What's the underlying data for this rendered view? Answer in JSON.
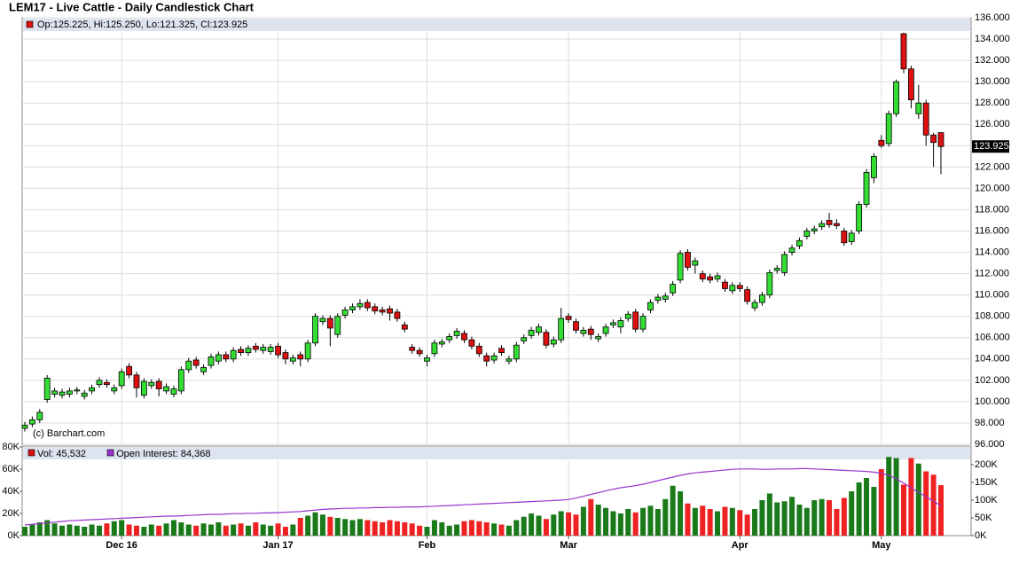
{
  "chart_data": [
    {
      "type": "candlestick",
      "title": "LEM17 - Live Cattle - Daily Candlestick Chart",
      "legend": "Op:125.225, Hi:125.250, Lo:121.325, Cl:123.925",
      "watermark": "(c) Barchart.com",
      "up_color": "#33dd33",
      "down_color": "#dd1111",
      "grid": true,
      "categories": [
        null,
        null,
        null,
        null,
        null,
        null,
        null,
        null,
        null,
        null,
        null,
        null,
        null,
        "Dec 16",
        null,
        null,
        null,
        null,
        null,
        null,
        null,
        null,
        null,
        null,
        null,
        null,
        null,
        null,
        null,
        null,
        null,
        null,
        null,
        null,
        "Jan 17",
        null,
        null,
        null,
        null,
        null,
        null,
        null,
        null,
        null,
        null,
        null,
        null,
        null,
        null,
        null,
        null,
        null,
        null,
        null,
        "Feb",
        null,
        null,
        null,
        null,
        null,
        null,
        null,
        null,
        null,
        null,
        null,
        null,
        null,
        null,
        null,
        null,
        null,
        null,
        "Mar",
        null,
        null,
        null,
        null,
        null,
        null,
        null,
        null,
        null,
        null,
        null,
        null,
        null,
        null,
        null,
        null,
        null,
        null,
        null,
        null,
        null,
        null,
        "Apr",
        null,
        null,
        null,
        null,
        null,
        null,
        null,
        null,
        null,
        null,
        null,
        null,
        null,
        null,
        null,
        null,
        null,
        null,
        "May",
        null,
        null,
        null,
        null,
        null,
        null,
        null,
        null
      ],
      "open": [
        97.5,
        97.9,
        98.3,
        100.2,
        100.7,
        100.6,
        100.7,
        101.0,
        100.5,
        101.0,
        101.6,
        101.8,
        101.0,
        101.5,
        103.3,
        102.5,
        100.6,
        101.5,
        101.9,
        101.0,
        100.7,
        101.0,
        103.0,
        103.9,
        102.8,
        103.4,
        103.8,
        104.4,
        104.0,
        104.9,
        104.6,
        105.2,
        104.8,
        104.7,
        105.2,
        104.6,
        103.8,
        104.4,
        104.0,
        105.5,
        107.5,
        107.8,
        106.3,
        108.1,
        108.6,
        108.9,
        109.3,
        108.9,
        108.6,
        108.7,
        108.4,
        107.2,
        105.1,
        104.8,
        103.8,
        104.5,
        105.4,
        105.8,
        106.2,
        106.4,
        105.8,
        105.2,
        104.3,
        103.9,
        105.0,
        103.8,
        104.0,
        105.7,
        106.2,
        106.5,
        106.5,
        105.4,
        105.8,
        108.0,
        107.5,
        106.4,
        106.8,
        105.9,
        106.4,
        107.2,
        107.0,
        107.8,
        108.4,
        106.8,
        108.6,
        109.5,
        109.6,
        110.2,
        111.4,
        114.0,
        112.8,
        112.0,
        111.7,
        111.5,
        111.2,
        110.4,
        110.9,
        110.5,
        108.8,
        109.3,
        110.0,
        112.3,
        112.1,
        114.0,
        114.6,
        115.5,
        116.0,
        116.4,
        117.0,
        116.7,
        116.0,
        115.0,
        116.0,
        118.5,
        121.0,
        124.5,
        124.2,
        127.0,
        134.5,
        131.2,
        127.0,
        128.0,
        125.0,
        125.225
      ],
      "high": [
        98.1,
        98.6,
        99.3,
        102.5,
        101.3,
        101.2,
        101.3,
        101.4,
        101.1,
        101.6,
        102.3,
        102.1,
        101.6,
        103.1,
        103.6,
        102.8,
        102.2,
        102.1,
        102.2,
        101.7,
        101.5,
        103.3,
        104.1,
        104.2,
        103.5,
        104.5,
        104.7,
        104.7,
        105.1,
        105.2,
        105.3,
        105.5,
        105.4,
        105.4,
        105.5,
        104.9,
        104.4,
        104.7,
        105.8,
        108.3,
        108.1,
        108.1,
        108.3,
        108.9,
        109.2,
        109.6,
        109.6,
        109.2,
        108.9,
        109.0,
        108.7,
        107.5,
        105.4,
        105.1,
        104.4,
        105.8,
        105.9,
        106.4,
        106.9,
        106.7,
        106.1,
        105.5,
        104.6,
        104.6,
        105.3,
        104.3,
        105.6,
        106.3,
        107.0,
        107.3,
        106.8,
        106.1,
        108.8,
        108.3,
        107.8,
        107.0,
        107.1,
        106.4,
        107.3,
        107.7,
        107.9,
        108.5,
        108.7,
        108.3,
        109.6,
        110.1,
        110.2,
        111.3,
        114.2,
        114.3,
        113.5,
        112.3,
        112.0,
        112.1,
        111.5,
        111.2,
        111.2,
        110.8,
        109.6,
        110.3,
        112.4,
        112.8,
        114.1,
        114.7,
        115.4,
        116.3,
        116.5,
        117.0,
        117.7,
        117.1,
        116.3,
        116.1,
        118.8,
        121.8,
        123.3,
        125.0,
        127.3,
        130.2,
        134.6,
        131.5,
        129.7,
        128.3,
        125.2,
        125.25
      ],
      "low": [
        97.2,
        97.6,
        98.0,
        99.9,
        100.4,
        100.3,
        100.4,
        100.7,
        100.2,
        100.7,
        101.3,
        101.3,
        100.7,
        101.2,
        102.2,
        100.4,
        100.3,
        101.2,
        100.5,
        100.7,
        100.4,
        100.7,
        102.7,
        103.1,
        102.5,
        103.1,
        103.5,
        103.7,
        103.7,
        104.3,
        104.3,
        104.6,
        104.5,
        104.4,
        104.1,
        103.5,
        103.5,
        103.3,
        103.7,
        105.2,
        107.2,
        105.2,
        106.0,
        107.8,
        108.3,
        108.6,
        108.5,
        108.2,
        108.1,
        107.6,
        107.5,
        106.5,
        104.5,
        104.2,
        103.3,
        104.2,
        105.1,
        105.5,
        105.9,
        105.5,
        104.9,
        104.2,
        103.3,
        103.6,
        104.3,
        103.5,
        103.7,
        105.4,
        105.9,
        106.2,
        105.0,
        105.1,
        105.5,
        107.4,
        106.4,
        106.1,
        105.8,
        105.6,
        106.1,
        106.9,
        106.4,
        107.5,
        106.5,
        106.5,
        108.3,
        109.2,
        109.3,
        109.9,
        111.1,
        112.3,
        112.0,
        111.2,
        111.1,
        111.2,
        110.3,
        110.1,
        110.3,
        109.1,
        108.5,
        109.0,
        109.7,
        112.0,
        111.8,
        113.7,
        114.3,
        115.2,
        115.7,
        116.1,
        116.3,
        116.2,
        114.6,
        114.7,
        115.7,
        118.2,
        120.5,
        123.8,
        123.9,
        126.7,
        130.8,
        127.5,
        126.5,
        124.0,
        122.0,
        121.325
      ],
      "close": [
        97.8,
        98.3,
        99.0,
        102.2,
        101.0,
        100.9,
        101.0,
        101.1,
        100.8,
        101.3,
        102.0,
        101.6,
        101.3,
        102.8,
        102.5,
        101.3,
        101.9,
        101.8,
        101.2,
        101.4,
        101.2,
        103.0,
        103.8,
        103.4,
        103.2,
        104.2,
        104.4,
        104.0,
        104.8,
        104.6,
        105.0,
        104.9,
        105.1,
        105.1,
        104.4,
        104.0,
        104.1,
        104.0,
        105.5,
        108.0,
        107.8,
        106.9,
        108.0,
        108.6,
        108.9,
        109.2,
        108.8,
        108.5,
        108.4,
        108.3,
        107.8,
        106.8,
        104.8,
        104.5,
        104.1,
        105.5,
        105.6,
        106.1,
        106.6,
        105.8,
        105.2,
        104.5,
        103.8,
        104.3,
        104.6,
        104.0,
        105.3,
        106.0,
        106.7,
        107.0,
        105.3,
        105.8,
        107.8,
        107.7,
        106.7,
        106.7,
        106.3,
        106.1,
        107.0,
        107.4,
        107.6,
        108.2,
        106.8,
        108.0,
        109.3,
        109.8,
        109.9,
        111.0,
        113.9,
        112.6,
        113.2,
        111.5,
        111.4,
        111.8,
        110.6,
        110.9,
        110.6,
        109.4,
        109.3,
        110.0,
        112.1,
        112.5,
        113.8,
        114.4,
        115.1,
        116.0,
        116.2,
        116.7,
        116.6,
        116.5,
        114.9,
        115.8,
        118.5,
        121.5,
        123.0,
        124.0,
        127.0,
        130.0,
        131.2,
        128.3,
        128.0,
        125.0,
        124.3,
        123.925
      ],
      "ylim": [
        96,
        136
      ],
      "yticks": [
        {
          "value": 96,
          "label": "96.000"
        },
        {
          "value": 98,
          "label": "98.000"
        },
        {
          "value": 100,
          "label": "100.000"
        },
        {
          "value": 102,
          "label": "102.000"
        },
        {
          "value": 104,
          "label": "104.000"
        },
        {
          "value": 106,
          "label": "106.000"
        },
        {
          "value": 108,
          "label": "108.000"
        },
        {
          "value": 110,
          "label": "110.000"
        },
        {
          "value": 112,
          "label": "112.000"
        },
        {
          "value": 114,
          "label": "114.000"
        },
        {
          "value": 116,
          "label": "116.000"
        },
        {
          "value": 118,
          "label": "118.000"
        },
        {
          "value": 120,
          "label": "120.000"
        },
        {
          "value": 122,
          "label": "122.000"
        },
        {
          "value": 124,
          "label": "124.000"
        },
        {
          "value": 126,
          "label": "126.000"
        },
        {
          "value": 128,
          "label": "128.000"
        },
        {
          "value": 130,
          "label": "130.000"
        },
        {
          "value": 132,
          "label": "132.000"
        },
        {
          "value": 134,
          "label": "134.000"
        },
        {
          "value": 136,
          "label": "136.000"
        }
      ]
    },
    {
      "type": "bar",
      "up_color": "#1a7a1a",
      "down_color": "#ee2222",
      "series": [
        {
          "name": "Vol: 45,532",
          "color": "#dd1111",
          "values": [
            8000,
            10000,
            12000,
            14000,
            11000,
            9000,
            10000,
            9000,
            8000,
            10000,
            9000,
            11000,
            13000,
            14000,
            10000,
            9000,
            8000,
            10000,
            9000,
            11000,
            14000,
            12000,
            10000,
            9000,
            11000,
            10000,
            12000,
            9000,
            10000,
            11000,
            9000,
            12000,
            10000,
            9000,
            11000,
            8000,
            10000,
            16000,
            18000,
            21000,
            19000,
            17000,
            16000,
            15000,
            14000,
            15000,
            14000,
            13000,
            12000,
            14000,
            13000,
            12000,
            11000,
            9000,
            8000,
            14000,
            12000,
            9000,
            10000,
            13000,
            14000,
            13000,
            12000,
            11000,
            10000,
            9000,
            14000,
            17000,
            20000,
            18000,
            15000,
            19000,
            22000,
            21000,
            19000,
            26000,
            33000,
            28000,
            25000,
            22000,
            20000,
            24000,
            21000,
            25000,
            27000,
            24000,
            33000,
            45000,
            40000,
            29000,
            25000,
            27000,
            24000,
            22000,
            26000,
            25000,
            23000,
            19000,
            24000,
            32000,
            38000,
            30000,
            31000,
            35000,
            28000,
            25000,
            32000,
            33000,
            32000,
            24000,
            34000,
            40000,
            48000,
            52000,
            44000,
            60000,
            71000,
            70000,
            46000,
            70000,
            65000,
            58000,
            55000,
            45532
          ]
        },
        {
          "name": "Open Interest: 84,368",
          "color": "#9933cc",
          "axis": "y2",
          "values": [
            30000,
            32000,
            34000,
            36000,
            38000,
            40000,
            42000,
            43000,
            44000,
            45000,
            46000,
            47000,
            48000,
            49000,
            50000,
            51000,
            52000,
            53000,
            54000,
            55000,
            55000,
            56000,
            57000,
            58000,
            59000,
            60000,
            60000,
            61000,
            62000,
            62000,
            63000,
            63000,
            64000,
            64000,
            65000,
            66000,
            67000,
            68000,
            70000,
            72000,
            74000,
            75000,
            76000,
            77000,
            77000,
            78000,
            78000,
            79000,
            79000,
            80000,
            80000,
            81000,
            81000,
            81000,
            82000,
            83000,
            84000,
            85000,
            86000,
            87000,
            88000,
            89000,
            90000,
            91000,
            92000,
            93000,
            94000,
            95000,
            96000,
            97000,
            98000,
            99000,
            100000,
            102000,
            106000,
            111000,
            116000,
            121000,
            126000,
            131000,
            135000,
            138000,
            141000,
            145000,
            150000,
            155000,
            160000,
            165000,
            170000,
            174000,
            177000,
            179000,
            181000,
            183000,
            185000,
            187000,
            188000,
            188000,
            188000,
            187000,
            187000,
            188000,
            188000,
            188000,
            189000,
            189000,
            188000,
            187000,
            186000,
            185000,
            184000,
            183000,
            182000,
            181000,
            179000,
            176000,
            170000,
            160000,
            148000,
            135000,
            122000,
            110000,
            97000,
            84368
          ]
        }
      ],
      "ylim": [
        0,
        80000
      ],
      "yticks": [
        {
          "value": 0,
          "label": "0K"
        },
        {
          "value": 20000,
          "label": "20K"
        },
        {
          "value": 40000,
          "label": "40K"
        },
        {
          "value": 60000,
          "label": "60K"
        },
        {
          "value": 80000,
          "label": "80K"
        }
      ],
      "y2lim": [
        0,
        250000
      ],
      "y2ticks": [
        {
          "value": 0,
          "label": "0K"
        },
        {
          "value": 50000,
          "label": "50K"
        },
        {
          "value": 100000,
          "label": "100K"
        },
        {
          "value": 150000,
          "label": "150K"
        },
        {
          "value": 200000,
          "label": "200K"
        }
      ]
    }
  ]
}
